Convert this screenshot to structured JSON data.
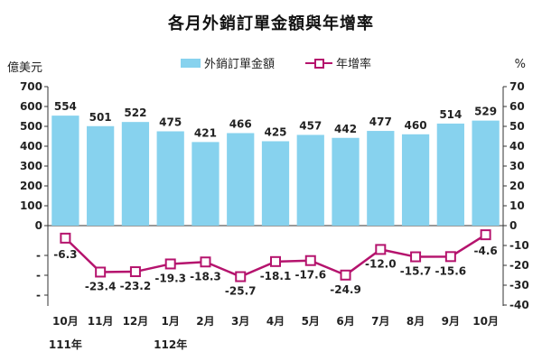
{
  "chart_data": {
    "type": "bar+line",
    "title": "各月外銷訂單金額與年增率",
    "left_unit": "億美元",
    "right_unit": "%",
    "categories": [
      "10月",
      "11月",
      "12月",
      "1月",
      "2月",
      "3月",
      "4月",
      "5月",
      "6月",
      "7月",
      "8月",
      "9月",
      "10月"
    ],
    "year_labels": [
      {
        "index": 0,
        "label": "111年"
      },
      {
        "index": 3,
        "label": "112年"
      }
    ],
    "series": [
      {
        "name": "外銷訂單金額",
        "type": "bar",
        "axis": "left",
        "color": "#87d2ee",
        "values": [
          554,
          501,
          522,
          475,
          421,
          466,
          425,
          457,
          442,
          477,
          460,
          514,
          529
        ],
        "labels": [
          "554",
          "501",
          "522",
          "475",
          "421",
          "466",
          "425",
          "457",
          "442",
          "477",
          "460",
          "514",
          "529"
        ]
      },
      {
        "name": "年增率",
        "type": "line",
        "axis": "right",
        "color": "#b5136d",
        "values": [
          -6.3,
          -23.4,
          -23.2,
          -19.3,
          -18.3,
          -25.7,
          -18.1,
          -17.6,
          -24.9,
          -12.0,
          -15.7,
          -15.6,
          -4.6
        ],
        "labels": [
          "-6.3",
          "-23.4",
          "-23.2",
          "-19.3",
          "-18.3",
          "-25.7",
          "-18.1",
          "-17.6",
          "-24.9",
          "-12.0",
          "-15.7",
          "-15.6",
          "-4.6"
        ]
      }
    ],
    "left_axis": {
      "ticks": [
        0,
        100,
        200,
        300,
        400,
        500,
        600,
        700
      ],
      "tick_labels": [
        "0",
        "100",
        "200",
        "300",
        "400",
        "500",
        "600",
        "700"
      ],
      "range": [
        0,
        700
      ]
    },
    "right_axis": {
      "ticks": [
        70,
        60,
        50,
        40,
        30,
        20,
        10,
        0,
        -10,
        -20,
        -30,
        -40
      ],
      "tick_labels": [
        "70",
        "60",
        "50",
        "40",
        "30",
        "20",
        "10",
        "0",
        "-10",
        "-20",
        "-30",
        "-40"
      ],
      "range": [
        -40,
        70
      ]
    },
    "left_negative_tick_labels": [
      "-",
      "-",
      "-"
    ],
    "grid": false,
    "legend": "top"
  }
}
